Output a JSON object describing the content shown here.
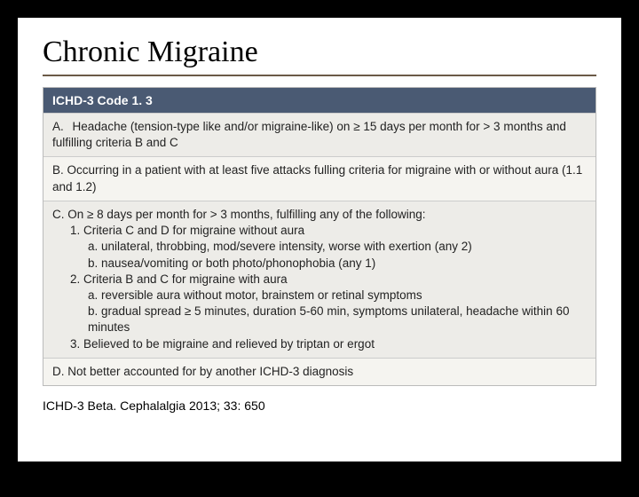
{
  "title": "Chronic Migraine",
  "header": "ICHD-3 Code 1. 3",
  "rowA": {
    "prefix": "A.",
    "text": "Headache (tension-type like and/or migraine-like) on ≥ 15 days per month for > 3 months and fulfilling criteria B and C"
  },
  "rowB": {
    "text": "B. Occurring in a patient with at least five attacks fulling criteria for migraine with or without aura (1.1 and 1.2)"
  },
  "rowC": {
    "line1": "C. On ≥ 8 days per month for > 3 months, fulfilling any of the following:",
    "item1": "1. Criteria C and D for migraine without aura",
    "item1a": "a. unilateral, throbbing, mod/severe intensity, worse with exertion (any 2)",
    "item1b": "b. nausea/vomiting or both photo/phonophobia (any 1)",
    "item2": "2. Criteria B and C for migraine with aura",
    "item2a": "a. reversible aura without motor, brainstem or retinal symptoms",
    "item2b": "b. gradual spread ≥ 5 minutes, duration 5-60 min, symptoms unilateral, headache within 60 minutes",
    "item3": "3. Believed to be migraine and relieved by triptan or ergot"
  },
  "rowD": {
    "text": "D. Not better accounted for by another ICHD-3 diagnosis"
  },
  "citation": "ICHD-3 Beta. Cephalalgia 2013; 33: 650",
  "colors": {
    "background": "#000000",
    "slide_bg": "#ffffff",
    "title_rule": "#6b5a47",
    "header_bg": "#4a5a73",
    "header_text": "#ffffff",
    "row_alt1": "#edece8",
    "row_alt2": "#f5f4f0"
  }
}
